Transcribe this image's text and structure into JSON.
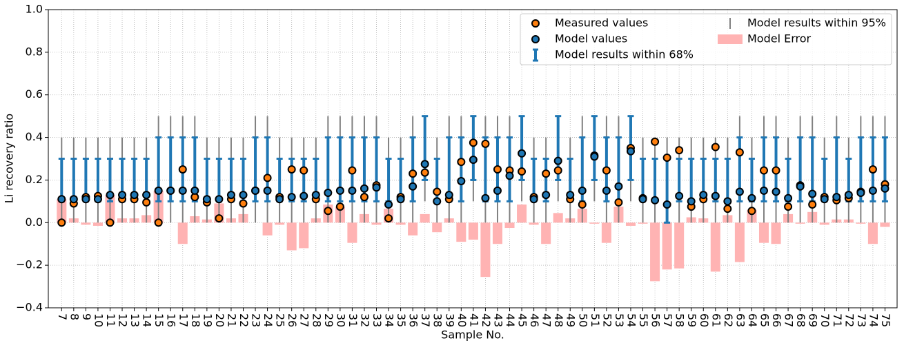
{
  "chart_data": {
    "type": "errorbar",
    "xlabel": "Sample No.",
    "ylabel": "Li recovery ratio",
    "x": [
      7,
      8,
      9,
      10,
      11,
      12,
      13,
      14,
      15,
      16,
      17,
      18,
      19,
      20,
      21,
      22,
      23,
      24,
      25,
      26,
      27,
      28,
      29,
      30,
      31,
      32,
      33,
      34,
      35,
      36,
      37,
      38,
      39,
      40,
      41,
      42,
      43,
      44,
      45,
      46,
      47,
      48,
      49,
      50,
      51,
      52,
      53,
      54,
      55,
      56,
      57,
      58,
      59,
      60,
      61,
      62,
      63,
      64,
      65,
      66,
      67,
      68,
      69,
      70,
      71,
      72,
      73,
      74,
      75
    ],
    "xlim": [
      5.9,
      76.0
    ],
    "xticks": [
      7,
      8,
      9,
      10,
      11,
      12,
      13,
      14,
      15,
      16,
      17,
      18,
      19,
      20,
      21,
      22,
      23,
      24,
      25,
      26,
      27,
      28,
      29,
      30,
      31,
      32,
      33,
      34,
      35,
      36,
      37,
      38,
      39,
      40,
      41,
      42,
      43,
      44,
      45,
      46,
      47,
      48,
      49,
      50,
      51,
      52,
      53,
      54,
      55,
      56,
      57,
      58,
      59,
      60,
      61,
      62,
      63,
      64,
      65,
      66,
      67,
      68,
      69,
      70,
      71,
      72,
      73,
      74,
      75
    ],
    "ylim": [
      -0.4,
      1.0
    ],
    "yticks": [
      {
        "value": -0.4,
        "label": "−0.4"
      },
      {
        "value": -0.2,
        "label": "−0.2"
      },
      {
        "value": 0,
        "label": "0.0"
      },
      0.2,
      0.4,
      0.6,
      0.8,
      {
        "value": 1.0,
        "label": "1.0"
      }
    ],
    "grid": true,
    "legend": "upper right",
    "series": [
      {
        "name": "Measured values",
        "type": "scatter",
        "color": "#ff7f0e",
        "values": [
          0,
          0.09,
          0.12,
          0.125,
          0,
          0.11,
          0.11,
          0.095,
          0,
          0.15,
          0.25,
          0.12,
          0.095,
          0.02,
          0.11,
          0.09,
          0.15,
          0.21,
          0.12,
          0.25,
          0.245,
          0.11,
          0.055,
          0.075,
          0.245,
          0.12,
          0.175,
          0.02,
          0.12,
          0.23,
          0.235,
          0.145,
          0.11,
          0.285,
          0.375,
          0.37,
          0.25,
          0.245,
          0.24,
          0.12,
          0.23,
          0.245,
          0.11,
          0.085,
          0.315,
          0.245,
          0.095,
          0.35,
          0.115,
          0.38,
          0.305,
          0.34,
          0.075,
          0.11,
          0.355,
          0.065,
          0.33,
          0.055,
          0.245,
          0.245,
          0.075,
          0.175,
          0.085,
          0.12,
          0.105,
          0.115,
          0.145,
          0.25,
          0.18
        ]
      },
      {
        "name": "Model values",
        "type": "scatter",
        "color": "#1f77b4",
        "values": [
          0.11,
          0.11,
          0.11,
          0.11,
          0.13,
          0.13,
          0.13,
          0.13,
          0.15,
          0.15,
          0.15,
          0.15,
          0.11,
          0.11,
          0.13,
          0.13,
          0.15,
          0.15,
          0.11,
          0.12,
          0.125,
          0.13,
          0.14,
          0.15,
          0.15,
          0.16,
          0.165,
          0.085,
          0.11,
          0.17,
          0.275,
          0.1,
          0.13,
          0.195,
          0.295,
          0.115,
          0.15,
          0.22,
          0.325,
          0.11,
          0.13,
          0.29,
          0.13,
          0.15,
          0.31,
          0.15,
          0.17,
          0.335,
          0.11,
          0.105,
          0.085,
          0.125,
          0.1,
          0.13,
          0.125,
          0.1,
          0.145,
          0.115,
          0.15,
          0.145,
          0.115,
          0.17,
          0.135,
          0.11,
          0.12,
          0.13,
          0.14,
          0.15,
          0.16
        ]
      },
      {
        "name": "Model results within 68%",
        "type": "range",
        "color": "#1f77b4",
        "low": [
          0.1,
          0.1,
          0.1,
          0.1,
          0.1,
          0.1,
          0.1,
          0.1,
          0.1,
          0.1,
          0.1,
          0.1,
          0.1,
          0.1,
          0.1,
          0.1,
          0.1,
          0.1,
          0.1,
          0.1,
          0.1,
          0.1,
          0.1,
          0.1,
          0.1,
          0.1,
          0.1,
          0.1,
          0.1,
          0.1,
          0.2,
          0.1,
          0.1,
          0.1,
          0.2,
          0.1,
          0.1,
          0.1,
          0.2,
          0.1,
          0.1,
          0.2,
          0.1,
          0.1,
          0.2,
          0.1,
          0.1,
          0.2,
          0.1,
          0.1,
          0,
          0.1,
          0.1,
          0.1,
          0.1,
          0.1,
          0.1,
          0.1,
          0.1,
          0.1,
          0.1,
          0.1,
          0.1,
          0.1,
          0.1,
          0.1,
          0.1,
          0.1,
          0.1
        ],
        "high": [
          0.3,
          0.3,
          0.3,
          0.3,
          0.3,
          0.3,
          0.3,
          0.3,
          0.4,
          0.4,
          0.4,
          0.4,
          0.3,
          0.3,
          0.3,
          0.3,
          0.4,
          0.4,
          0.3,
          0.3,
          0.3,
          0.3,
          0.4,
          0.4,
          0.4,
          0.4,
          0.4,
          0.3,
          0.3,
          0.4,
          0.5,
          0.3,
          0.4,
          0.4,
          0.5,
          0.4,
          0.4,
          0.4,
          0.5,
          0.3,
          0.3,
          0.5,
          0.3,
          0.4,
          0.5,
          0.4,
          0.4,
          0.5,
          0.3,
          0.3,
          0.3,
          0.3,
          0.3,
          0.3,
          0.3,
          0.3,
          0.4,
          0.3,
          0.4,
          0.4,
          0.3,
          0.4,
          0.4,
          0.3,
          0.4,
          0.3,
          0.4,
          0.4,
          0.4
        ]
      },
      {
        "name": "Model results within 95%",
        "type": "range",
        "color": "#808080",
        "low": [
          0,
          0,
          0,
          0,
          0,
          0,
          0,
          0,
          0,
          0,
          0,
          0,
          0,
          0,
          0,
          0,
          0,
          0,
          0,
          0,
          0,
          0,
          0,
          0,
          0,
          0,
          0,
          0,
          0,
          0,
          0.1,
          0,
          0,
          0,
          0.1,
          0,
          0,
          0,
          0.1,
          0,
          0,
          0.1,
          0,
          0,
          0.1,
          0,
          0,
          0.1,
          0,
          0,
          0,
          0,
          0,
          0,
          0,
          0,
          0,
          0,
          0,
          0,
          0,
          0,
          0,
          0,
          0,
          0,
          0,
          0,
          0
        ],
        "high": [
          0.4,
          0.4,
          0.4,
          0.4,
          0.4,
          0.4,
          0.4,
          0.4,
          0.5,
          0.5,
          0.5,
          0.5,
          0.4,
          0.4,
          0.4,
          0.4,
          0.5,
          0.5,
          0.4,
          0.4,
          0.4,
          0.4,
          0.5,
          0.5,
          0.5,
          0.5,
          0.5,
          0.4,
          0.4,
          0.5,
          0.5,
          0.4,
          0.5,
          0.5,
          0.5,
          0.5,
          0.5,
          0.5,
          0.5,
          0.4,
          0.4,
          0.5,
          0.4,
          0.5,
          0.5,
          0.5,
          0.5,
          0.5,
          0.4,
          0.4,
          0.4,
          0.4,
          0.4,
          0.4,
          0.4,
          0.4,
          0.5,
          0.4,
          0.5,
          0.5,
          0.4,
          0.5,
          0.5,
          0.4,
          0.5,
          0.4,
          0.5,
          0.5,
          0.5
        ]
      },
      {
        "name": "Model Error",
        "type": "bar",
        "color": "#ffb3b3",
        "values": [
          0.11,
          0.02,
          -0.01,
          -0.015,
          0.13,
          0.02,
          0.02,
          0.035,
          0.15,
          0,
          -0.1,
          0.03,
          0.015,
          0.09,
          0.02,
          0.04,
          0,
          -0.06,
          -0.01,
          -0.13,
          -0.12,
          0.02,
          0.085,
          0.075,
          -0.095,
          0.04,
          -0.01,
          0.065,
          -0.01,
          -0.06,
          0.04,
          -0.045,
          0.02,
          -0.09,
          -0.08,
          -0.255,
          -0.1,
          -0.025,
          0.085,
          -0.01,
          -0.1,
          0.045,
          0.02,
          0.065,
          -0.005,
          -0.095,
          0.075,
          -0.015,
          -0.005,
          -0.275,
          -0.22,
          -0.215,
          0.025,
          0.02,
          -0.23,
          0.035,
          -0.185,
          0.06,
          -0.095,
          -0.1,
          0.04,
          -0.005,
          0.05,
          -0.01,
          0.015,
          0.015,
          -0.005,
          -0.1,
          -0.02
        ]
      }
    ]
  }
}
